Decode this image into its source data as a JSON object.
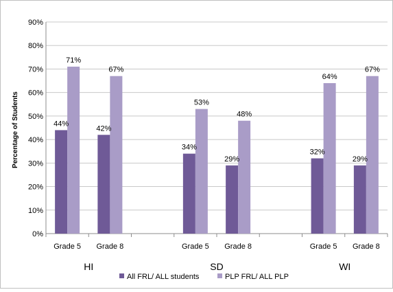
{
  "chart_data": {
    "type": "bar",
    "title": "",
    "ylabel": "Percentage of Students",
    "ylim": [
      0,
      90
    ],
    "yticks": [
      "0%",
      "10%",
      "20%",
      "30%",
      "40%",
      "50%",
      "60%",
      "70%",
      "80%",
      "90%"
    ],
    "grid": true,
    "legend_position": "bottom",
    "groups": [
      "HI",
      "SD",
      "WI"
    ],
    "categories": [
      "Grade 5",
      "Grade 8",
      "Grade 5",
      "Grade 8",
      "Grade 5",
      "Grade 8"
    ],
    "category_group": [
      0,
      0,
      1,
      1,
      2,
      2
    ],
    "series": [
      {
        "name": "All FRL/ ALL students",
        "color": "#6f5a97",
        "values": [
          44,
          42,
          34,
          29,
          32,
          29
        ],
        "labels": [
          "44%",
          "42%",
          "34%",
          "29%",
          "32%",
          "29%"
        ]
      },
      {
        "name": "PLP FRL/ ALL PLP",
        "color": "#a99cc7",
        "values": [
          71,
          67,
          53,
          48,
          64,
          67
        ],
        "labels": [
          "71%",
          "67%",
          "53%",
          "48%",
          "64%",
          "67%"
        ]
      }
    ]
  }
}
